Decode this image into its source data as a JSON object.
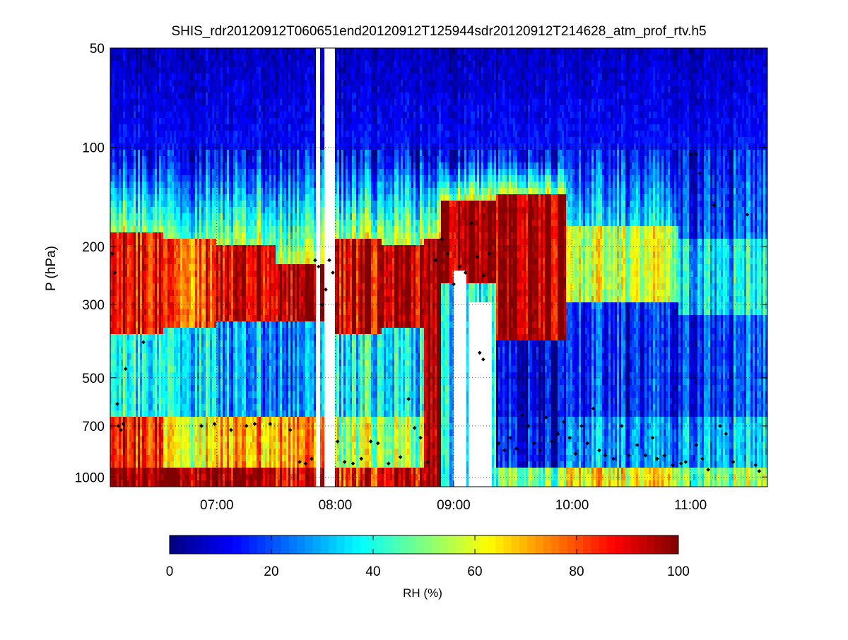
{
  "chart_data": {
    "type": "heatmap",
    "title": "SHIS_rdr20120912T060651end20120912T125944sdr20120912T214628_atm_prof_rtv.h5",
    "xlabel": "",
    "ylabel": "P (hPa)",
    "x_range_hours": [
      6.1,
      11.65
    ],
    "x_ticks": [
      {
        "hour": 7,
        "label": "07:00"
      },
      {
        "hour": 8,
        "label": "08:00"
      },
      {
        "hour": 9,
        "label": "09:00"
      },
      {
        "hour": 10,
        "label": "10:00"
      },
      {
        "hour": 11,
        "label": "11:00"
      }
    ],
    "y_scale": "log",
    "y_range": [
      1070,
      50
    ],
    "y_ticks": [
      {
        "value": 50,
        "label": "50"
      },
      {
        "value": 100,
        "label": "100"
      },
      {
        "value": 200,
        "label": "200"
      },
      {
        "value": 300,
        "label": "300"
      },
      {
        "value": 500,
        "label": "500"
      },
      {
        "value": 700,
        "label": "700"
      },
      {
        "value": 1000,
        "label": "1000"
      }
    ],
    "grid": true,
    "colormap": "jet",
    "colorbar": {
      "label": "RH (%)",
      "range": [
        0,
        100
      ],
      "ticks": [
        {
          "value": 0,
          "label": "0"
        },
        {
          "value": 20,
          "label": "20"
        },
        {
          "value": 40,
          "label": "40"
        },
        {
          "value": 60,
          "label": "60"
        },
        {
          "value": 80,
          "label": "80"
        },
        {
          "value": 100,
          "label": "100"
        }
      ]
    },
    "segments": [
      {
        "t0": 6.1,
        "t1": 6.55,
        "upper_rh": 88,
        "upper_p": [
          180,
          370
        ],
        "mid_rh": 40,
        "low_rh": 85,
        "surface_rh": 100
      },
      {
        "t0": 6.55,
        "t1": 7.0,
        "upper_rh": 80,
        "upper_p": [
          190,
          360
        ],
        "mid_rh": 38,
        "low_rh": 62,
        "surface_rh": 100
      },
      {
        "t0": 7.0,
        "t1": 7.5,
        "upper_rh": 92,
        "upper_p": [
          200,
          330
        ],
        "mid_rh": 28,
        "low_rh": 70,
        "surface_rh": 100
      },
      {
        "t0": 7.5,
        "t1": 7.9,
        "upper_rh": 96,
        "upper_p": [
          230,
          340
        ],
        "mid_rh": 25,
        "low_rh": 72,
        "surface_rh": 88
      },
      {
        "t0": 8.0,
        "t1": 8.4,
        "upper_rh": 92,
        "upper_p": [
          190,
          370
        ],
        "mid_rh": 38,
        "low_rh": 55,
        "surface_rh": 85
      },
      {
        "t0": 8.4,
        "t1": 8.75,
        "upper_rh": 95,
        "upper_p": [
          200,
          350
        ],
        "mid_rh": 35,
        "low_rh": 52,
        "surface_rh": 92
      },
      {
        "t0": 8.75,
        "t1": 8.9,
        "upper_rh": 100,
        "upper_p": [
          190,
          1070
        ],
        "mid_rh": 100,
        "low_rh": 100,
        "surface_rh": 100
      },
      {
        "t0": 8.9,
        "t1": 9.35,
        "upper_rh": 100,
        "upper_p": [
          145,
          260
        ],
        "mid_rh": 40,
        "low_rh": 40,
        "surface_rh": 40
      },
      {
        "t0": 9.35,
        "t1": 9.95,
        "upper_rh": 95,
        "upper_p": [
          140,
          380
        ],
        "mid_rh": 8,
        "low_rh": 12,
        "surface_rh": 48
      },
      {
        "t0": 9.95,
        "t1": 10.9,
        "upper_rh": 55,
        "upper_p": [
          170,
          300
        ],
        "mid_rh": 14,
        "low_rh": 25,
        "surface_rh": 62
      },
      {
        "t0": 10.9,
        "t1": 11.65,
        "upper_rh": 35,
        "upper_p": [
          190,
          320
        ],
        "mid_rh": 18,
        "low_rh": 30,
        "surface_rh": 50
      }
    ],
    "missing_columns": [
      {
        "t0": 7.84,
        "t1": 7.88
      },
      {
        "t0": 7.93,
        "t1": 7.97
      },
      {
        "t0": 9.0,
        "t1": 9.1,
        "p_min": 240
      },
      {
        "t0": 9.12,
        "t1": 9.32,
        "p_min": 300
      }
    ],
    "markers": [
      {
        "t": 6.12,
        "p": 210
      },
      {
        "t": 6.14,
        "p": 240
      },
      {
        "t": 6.16,
        "p": 600
      },
      {
        "t": 6.17,
        "p": 700
      },
      {
        "t": 6.19,
        "p": 720
      },
      {
        "t": 6.21,
        "p": 690
      },
      {
        "t": 6.23,
        "p": 470
      },
      {
        "t": 6.38,
        "p": 390
      },
      {
        "t": 6.87,
        "p": 700
      },
      {
        "t": 6.98,
        "p": 690
      },
      {
        "t": 7.12,
        "p": 720
      },
      {
        "t": 7.25,
        "p": 700
      },
      {
        "t": 7.32,
        "p": 690
      },
      {
        "t": 7.45,
        "p": 690
      },
      {
        "t": 7.62,
        "p": 720
      },
      {
        "t": 7.7,
        "p": 900
      },
      {
        "t": 7.75,
        "p": 910
      },
      {
        "t": 7.8,
        "p": 880
      },
      {
        "t": 7.83,
        "p": 220
      },
      {
        "t": 7.86,
        "p": 230
      },
      {
        "t": 7.89,
        "p": 300
      },
      {
        "t": 7.92,
        "p": 270
      },
      {
        "t": 7.95,
        "p": 220
      },
      {
        "t": 7.98,
        "p": 240
      },
      {
        "t": 8.02,
        "p": 780
      },
      {
        "t": 8.08,
        "p": 900
      },
      {
        "t": 8.15,
        "p": 910
      },
      {
        "t": 8.22,
        "p": 880
      },
      {
        "t": 8.3,
        "p": 780
      },
      {
        "t": 8.36,
        "p": 790
      },
      {
        "t": 8.45,
        "p": 910
      },
      {
        "t": 8.55,
        "p": 870
      },
      {
        "t": 8.62,
        "p": 580
      },
      {
        "t": 8.67,
        "p": 710
      },
      {
        "t": 8.72,
        "p": 760
      },
      {
        "t": 8.78,
        "p": 900
      },
      {
        "t": 8.85,
        "p": 220
      },
      {
        "t": 8.9,
        "p": 190
      },
      {
        "t": 8.95,
        "p": 210
      },
      {
        "t": 9.0,
        "p": 260
      },
      {
        "t": 9.05,
        "p": 230
      },
      {
        "t": 9.1,
        "p": 240
      },
      {
        "t": 9.15,
        "p": 170
      },
      {
        "t": 9.2,
        "p": 215
      },
      {
        "t": 9.25,
        "p": 245
      },
      {
        "t": 9.3,
        "p": 210
      },
      {
        "t": 9.22,
        "p": 420
      },
      {
        "t": 9.25,
        "p": 440
      },
      {
        "t": 9.38,
        "p": 790
      },
      {
        "t": 9.43,
        "p": 830
      },
      {
        "t": 9.48,
        "p": 760
      },
      {
        "t": 9.53,
        "p": 820
      },
      {
        "t": 9.58,
        "p": 650
      },
      {
        "t": 9.63,
        "p": 700
      },
      {
        "t": 9.68,
        "p": 790
      },
      {
        "t": 9.73,
        "p": 830
      },
      {
        "t": 9.78,
        "p": 660
      },
      {
        "t": 9.83,
        "p": 780
      },
      {
        "t": 9.88,
        "p": 740
      },
      {
        "t": 9.93,
        "p": 680
      },
      {
        "t": 9.98,
        "p": 760
      },
      {
        "t": 10.03,
        "p": 850
      },
      {
        "t": 10.08,
        "p": 700
      },
      {
        "t": 10.13,
        "p": 790
      },
      {
        "t": 10.18,
        "p": 620
      },
      {
        "t": 10.23,
        "p": 830
      },
      {
        "t": 10.28,
        "p": 860
      },
      {
        "t": 10.35,
        "p": 880
      },
      {
        "t": 10.42,
        "p": 700
      },
      {
        "t": 10.48,
        "p": 860
      },
      {
        "t": 10.55,
        "p": 800
      },
      {
        "t": 10.62,
        "p": 860
      },
      {
        "t": 10.68,
        "p": 760
      },
      {
        "t": 10.72,
        "p": 880
      },
      {
        "t": 10.78,
        "p": 860
      },
      {
        "t": 10.85,
        "p": 920
      },
      {
        "t": 10.92,
        "p": 910
      },
      {
        "t": 10.96,
        "p": 900
      },
      {
        "t": 11.0,
        "p": 105
      },
      {
        "t": 11.05,
        "p": 105
      },
      {
        "t": 11.08,
        "p": 120
      },
      {
        "t": 11.05,
        "p": 800
      },
      {
        "t": 11.1,
        "p": 880
      },
      {
        "t": 11.15,
        "p": 950
      },
      {
        "t": 11.2,
        "p": 150
      },
      {
        "t": 11.25,
        "p": 700
      },
      {
        "t": 11.3,
        "p": 740
      },
      {
        "t": 11.36,
        "p": 900
      },
      {
        "t": 11.48,
        "p": 160
      },
      {
        "t": 11.55,
        "p": 920
      },
      {
        "t": 11.58,
        "p": 960
      }
    ]
  }
}
